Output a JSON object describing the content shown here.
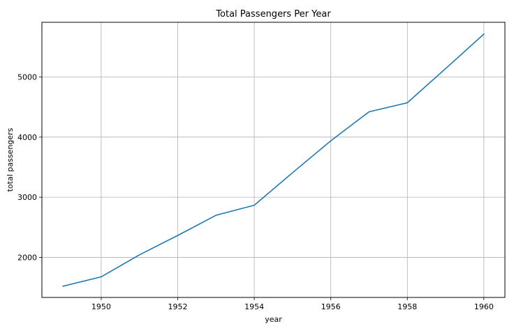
{
  "chart_data": {
    "type": "line",
    "title": "Total Passengers Per Year",
    "xlabel": "year",
    "ylabel": "total passengers",
    "xlim": [
      1948.45,
      1960.55
    ],
    "ylim": [
      1333,
      5910
    ],
    "x_ticks": [
      1950,
      1952,
      1954,
      1956,
      1958,
      1960
    ],
    "y_ticks": [
      2000,
      3000,
      4000,
      5000
    ],
    "grid": true,
    "series": [
      {
        "x": [
          1949,
          1950,
          1951,
          1952,
          1953,
          1954,
          1955,
          1956,
          1957,
          1958,
          1959,
          1960
        ],
        "values": [
          1520,
          1676,
          2042,
          2364,
          2700,
          2867,
          3408,
          3939,
          4421,
          4572,
          5140,
          5714
        ],
        "color": "#1f77b4"
      }
    ]
  }
}
